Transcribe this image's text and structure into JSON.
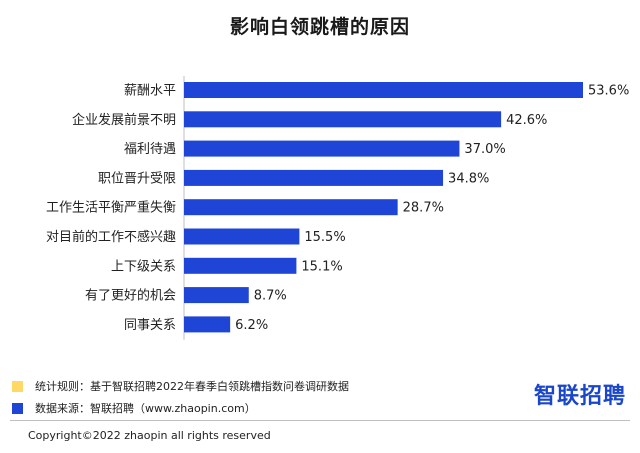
{
  "chart_data": {
    "type": "bar",
    "orientation": "horizontal",
    "title": "影响白领跳槽的原因",
    "categories": [
      "薪酬水平",
      "企业发展前景不明",
      "福利待遇",
      "职位晋升受限",
      "工作生活平衡严重失衡",
      "对目前的工作不感兴趣",
      "上下级关系",
      "有了更好的机会",
      "同事关系"
    ],
    "values": [
      53.6,
      42.6,
      37.0,
      34.8,
      28.7,
      15.5,
      15.1,
      8.7,
      6.2
    ],
    "value_labels": [
      "53.6%",
      "42.6%",
      "37.0%",
      "34.8%",
      "28.7%",
      "15.5%",
      "15.1%",
      "8.7%",
      "6.2%"
    ],
    "xlim": [
      0,
      53.6
    ],
    "grid": false,
    "bar_color": "#1f45d6"
  },
  "legend": [
    {
      "color": "#ffd966",
      "text": "统计规则：基于智联招聘2022年春季白领跳槽指数问卷调研数据"
    },
    {
      "color": "#1f45d6",
      "text": "数据来源：智联招聘（www.zhaopin.com）"
    }
  ],
  "logo_text": "智联招聘",
  "copyright": "Copyright©2022 zhaopin all rights reserved"
}
